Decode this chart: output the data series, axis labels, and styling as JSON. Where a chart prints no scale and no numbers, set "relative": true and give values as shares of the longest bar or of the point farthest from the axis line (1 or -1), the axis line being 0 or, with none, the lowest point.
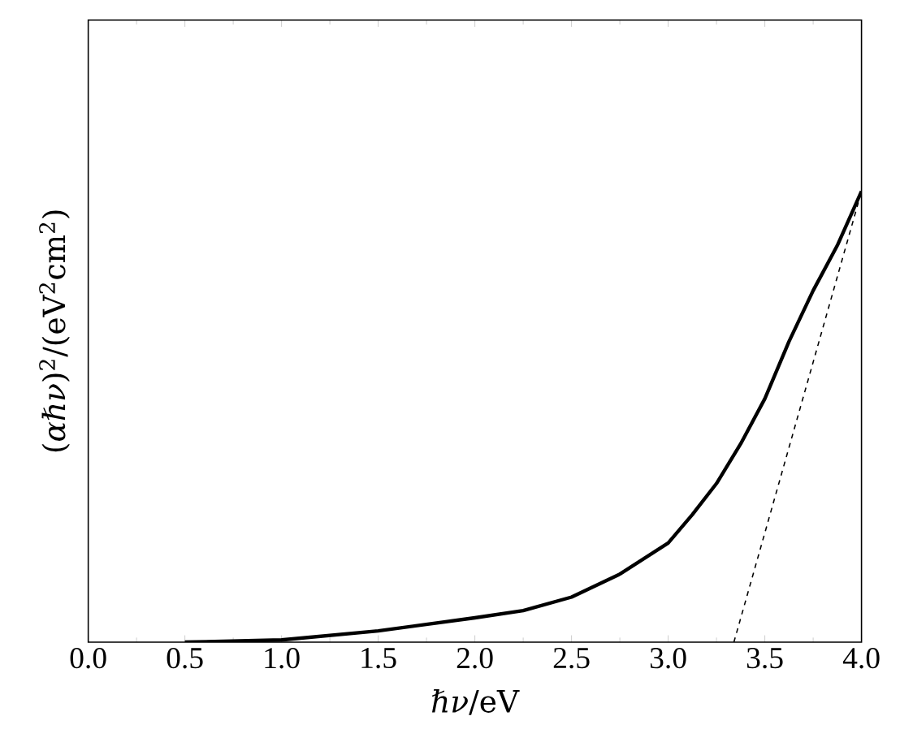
{
  "chart_data": {
    "type": "line",
    "relative": true,
    "xlabel": "*ℏν*/eV",
    "ylabel": "(*αℏν*)$^{2}$/(eV$^{2}$cm$^{2}$)",
    "x": [
      0.5,
      1.0,
      1.5,
      2.0,
      2.25,
      2.5,
      2.75,
      3.0,
      3.125,
      3.25,
      3.375,
      3.5,
      3.625,
      3.75,
      3.875,
      4.0
    ],
    "xlim": [
      0.0,
      4.0
    ],
    "xticks": [
      {
        "value": 0.0,
        "label": "0.0"
      },
      {
        "value": 0.5,
        "label": "0.5"
      },
      {
        "value": 1.0,
        "label": "1.0"
      },
      {
        "value": 1.5,
        "label": "1.5"
      },
      {
        "value": 2.0,
        "label": "2.0"
      },
      {
        "value": 2.5,
        "label": "2.5"
      },
      {
        "value": 3.0,
        "label": "3.0"
      },
      {
        "value": 3.5,
        "label": "3.5"
      },
      {
        "value": 4.0,
        "label": "4.0"
      }
    ],
    "series": [
      {
        "color": "#000000",
        "values": [
          0,
          0.005,
          0.025,
          0.054,
          0.07,
          0.1,
          0.151,
          0.22,
          0.283,
          0.352,
          0.44,
          0.54,
          0.667,
          0.78,
          0.88,
          1.0
        ]
      },
      {
        "type": "line",
        "line_style": "dashed",
        "color": "#000000",
        "x": [
          3.34,
          4.0
        ],
        "values": [
          0,
          1.0
        ]
      }
    ]
  }
}
